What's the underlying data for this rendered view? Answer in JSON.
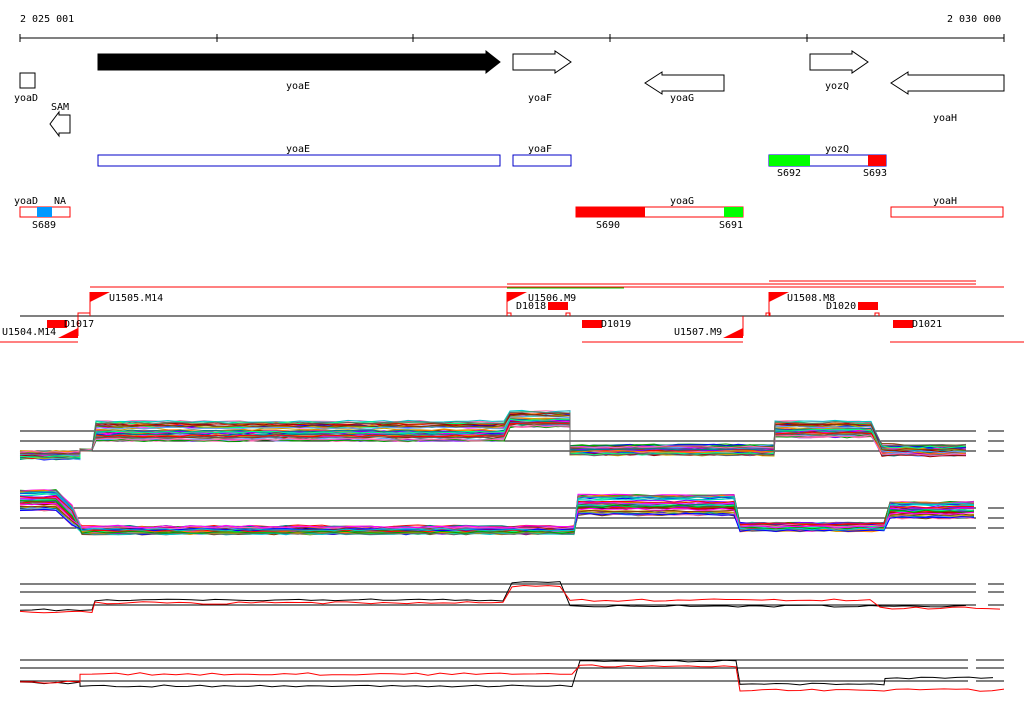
{
  "ruler": {
    "start_label": "2 025 001",
    "end_label": "2 030 000"
  },
  "genes": [
    {
      "name": "yoaD",
      "strand": "forward"
    },
    {
      "name": "SAM",
      "strand": "reverse"
    },
    {
      "name": "yoaE",
      "strand": "forward",
      "highlighted": true
    },
    {
      "name": "yoaF",
      "strand": "forward"
    },
    {
      "name": "yoaG",
      "strand": "reverse"
    },
    {
      "name": "yozQ",
      "strand": "forward"
    },
    {
      "name": "yoaH",
      "strand": "reverse"
    }
  ],
  "transcript_labels": {
    "yoaE": "yoaE",
    "yoaF": "yoaF",
    "yozQ": "yozQ",
    "yoaD": "yoaD",
    "NA": "NA",
    "yoaG": "yoaG",
    "yoaH": "yoaH"
  },
  "segment_labels": [
    "S692",
    "S693",
    "S689",
    "S690",
    "S691"
  ],
  "upshift_labels": [
    "U1504.M14",
    "U1505.M14",
    "U1506.M9",
    "U1507.M9",
    "U1508.M8"
  ],
  "downshift_labels": [
    "D1017",
    "D1018",
    "D1019",
    "D1020",
    "D1021"
  ],
  "colors": {
    "forward_outline": "#000000",
    "transcript_blue": "#0000c8",
    "transcript_red": "#ff0000",
    "segment_green": "#00ff00",
    "segment_blue": "#0099ff",
    "segment_red": "#ff0000",
    "profile_black": "#000000",
    "profile_red": "#ff0000"
  },
  "expression_panels": [
    {
      "name": "forward-strand profiles",
      "style": "multicolor"
    },
    {
      "name": "reverse-strand profiles",
      "style": "multicolor"
    },
    {
      "name": "forward-strand summary",
      "style": "black-red"
    },
    {
      "name": "reverse-strand summary",
      "style": "black-red"
    }
  ]
}
